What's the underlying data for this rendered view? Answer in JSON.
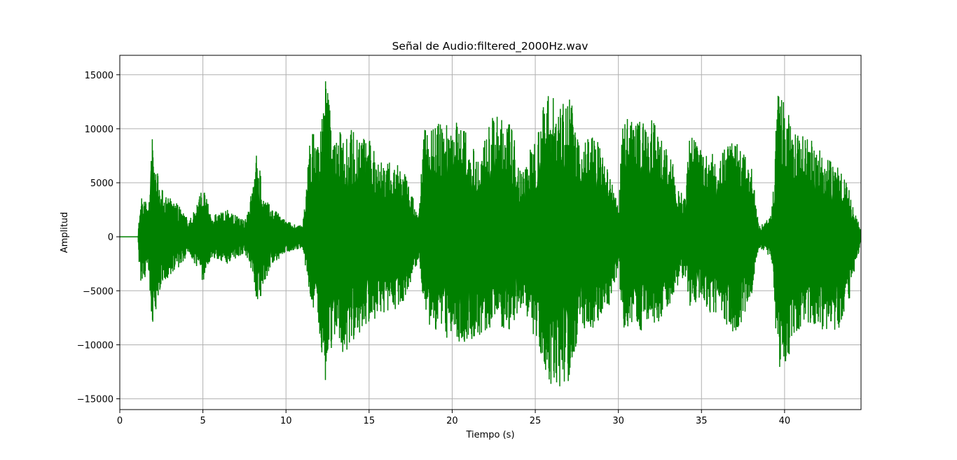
{
  "chart_data": {
    "type": "line",
    "title": "Señal de Audio:filtered_2000Hz.wav",
    "xlabel": "Tiempo (s)",
    "ylabel": "Amplitud",
    "xlim": [
      0,
      44.6
    ],
    "ylim": [
      -16000,
      16800
    ],
    "xticks": [
      0,
      5,
      10,
      15,
      20,
      25,
      30,
      35,
      40
    ],
    "yticks": [
      -15000,
      -10000,
      -5000,
      0,
      5000,
      10000,
      15000
    ],
    "xtick_labels": [
      "0",
      "5",
      "10",
      "15",
      "20",
      "25",
      "30",
      "35",
      "40"
    ],
    "ytick_labels": [
      "−15000",
      "−10000",
      "−5000",
      "0",
      "5000",
      "10000",
      "15000"
    ],
    "grid": true,
    "line_color": "#008000",
    "series": [
      {
        "envelope_time": [
          0,
          1.1,
          1.2,
          1.8,
          1.85,
          2.5,
          3.5,
          4.2,
          5.0,
          5.5,
          6.5,
          7.5,
          8.0,
          8.3,
          8.6,
          9.0,
          10.0,
          11.0,
          11.5,
          12.0,
          12.4,
          12.9,
          13.5,
          14.0,
          15.0,
          16.0,
          17.0,
          18.0,
          18.3,
          19.0,
          20.0,
          20.5,
          21.5,
          22.5,
          23.5,
          24.2,
          25.0,
          25.8,
          26.5,
          27.0,
          27.6,
          28.5,
          29.5,
          30.0,
          30.3,
          31.0,
          32.0,
          33.0,
          34.0,
          34.3,
          35.0,
          36.0,
          37.0,
          38.0,
          38.5,
          39.2,
          39.6,
          40.0,
          40.5,
          41.5,
          42.5,
          43.5,
          44.6
        ],
        "envelope_max": [
          0,
          0,
          3800,
          3500,
          10100,
          4500,
          3000,
          1500,
          4800,
          2000,
          2500,
          1500,
          4700,
          8800,
          4000,
          3000,
          1500,
          1000,
          10100,
          9000,
          15400,
          9000,
          10400,
          10100,
          9000,
          7000,
          6500,
          2000,
          10600,
          10400,
          11000,
          10800,
          7500,
          11300,
          10700,
          6000,
          9500,
          14000,
          12000,
          14300,
          8500,
          10000,
          5500,
          3000,
          11400,
          10600,
          11200,
          8000,
          3500,
          9500,
          8000,
          7500,
          9300,
          6500,
          1000,
          2000,
          13100,
          12500,
          10000,
          9200,
          7400,
          6400,
          500
        ],
        "envelope_min": [
          0,
          0,
          -4200,
          -3500,
          -9100,
          -4500,
          -3000,
          -1500,
          -4200,
          -2000,
          -2500,
          -1500,
          -4000,
          -6400,
          -5000,
          -3000,
          -1500,
          -1000,
          -6300,
          -9000,
          -13700,
          -9300,
          -11000,
          -9800,
          -8000,
          -7000,
          -6500,
          -2000,
          -6400,
          -10100,
          -9000,
          -10000,
          -9500,
          -8200,
          -8800,
          -6500,
          -9500,
          -13800,
          -14400,
          -13600,
          -9000,
          -8500,
          -6200,
          -3000,
          -8700,
          -8800,
          -8800,
          -6500,
          -3500,
          -6400,
          -6500,
          -7500,
          -9600,
          -5500,
          -1000,
          -2000,
          -12300,
          -13300,
          -9000,
          -8000,
          -9000,
          -8800,
          -500
        ]
      }
    ]
  }
}
